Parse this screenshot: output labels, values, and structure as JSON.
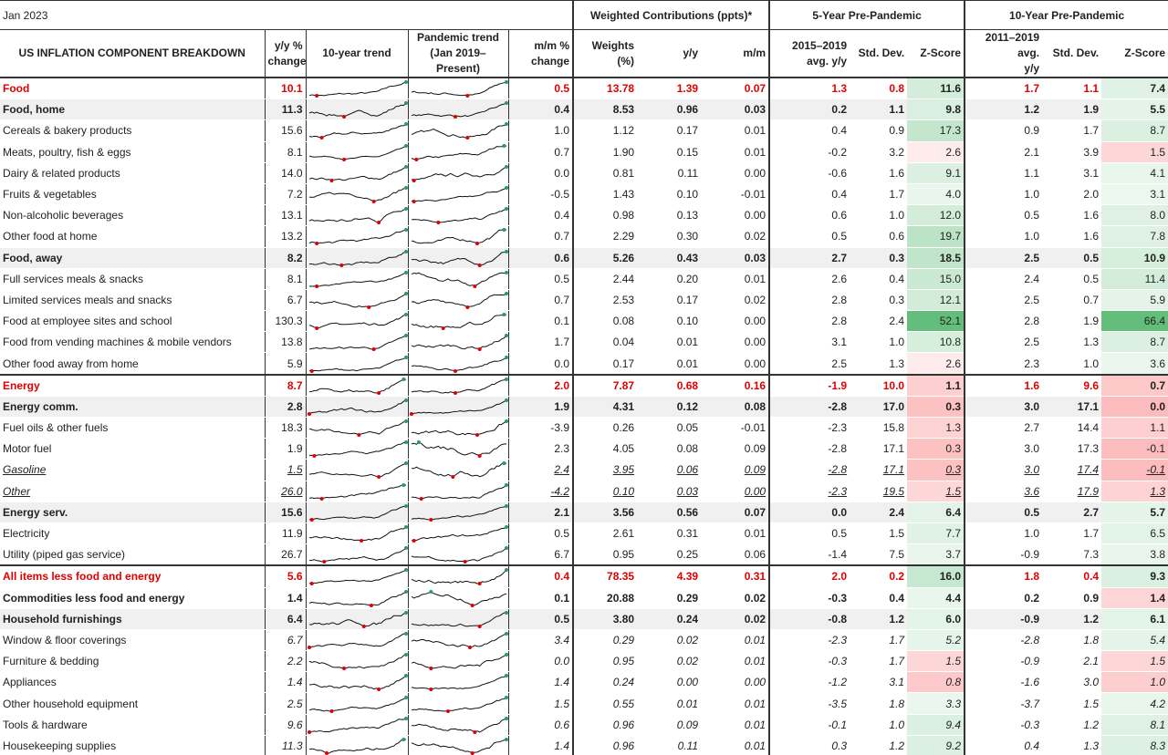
{
  "header": {
    "date": "Jan 2023",
    "groups": [
      "Weighted Contributions (ppts)*",
      "5-Year Pre-Pandemic",
      "10-Year Pre-Pandemic"
    ],
    "columns": [
      "US INFLATION COMPONENT BREAKDOWN",
      "y/y %\nchange",
      "10-year trend",
      "Pandemic trend\n(Jan 2019–Present)",
      "m/m %\nchange",
      "Weights\n(%)",
      "y/y",
      "m/m",
      "2015–2019\navg. y/y",
      "Std. Dev.",
      "Z-Score",
      "2011–2019 avg.\ny/y",
      "Std. Dev.",
      "Z-Score"
    ]
  },
  "rows": [
    {
      "style": "total",
      "cells": [
        "Food",
        "10.1",
        "0.5",
        "13.78",
        "1.39",
        "0.07",
        "1.3",
        "0.8",
        "11.6",
        "1.7",
        "1.1",
        "7.4"
      ]
    },
    {
      "style": "group",
      "cells": [
        "Food, home",
        "11.3",
        "0.4",
        "8.53",
        "0.96",
        "0.03",
        "0.2",
        "1.1",
        "9.8",
        "1.2",
        "1.9",
        "5.5"
      ]
    },
    {
      "style": "item",
      "cells": [
        "Cereals & bakery products",
        "15.6",
        "1.0",
        "1.12",
        "0.17",
        "0.01",
        "0.4",
        "0.9",
        "17.3",
        "0.9",
        "1.7",
        "8.7"
      ]
    },
    {
      "style": "item",
      "cells": [
        "Meats, poultry, fish & eggs",
        "8.1",
        "0.7",
        "1.90",
        "0.15",
        "0.01",
        "-0.2",
        "3.2",
        "2.6",
        "2.1",
        "3.9",
        "1.5"
      ]
    },
    {
      "style": "item",
      "cells": [
        "Dairy & related products",
        "14.0",
        "0.0",
        "0.81",
        "0.11",
        "0.00",
        "-0.6",
        "1.6",
        "9.1",
        "1.1",
        "3.1",
        "4.1"
      ]
    },
    {
      "style": "item",
      "cells": [
        "Fruits & vegetables",
        "7.2",
        "-0.5",
        "1.43",
        "0.10",
        "-0.01",
        "0.4",
        "1.7",
        "4.0",
        "1.0",
        "2.0",
        "3.1"
      ]
    },
    {
      "style": "item",
      "cells": [
        "Non-alcoholic beverages",
        "13.1",
        "0.4",
        "0.98",
        "0.13",
        "0.00",
        "0.6",
        "1.0",
        "12.0",
        "0.5",
        "1.6",
        "8.0"
      ]
    },
    {
      "style": "item",
      "cells": [
        "Other food at home",
        "13.2",
        "0.7",
        "2.29",
        "0.30",
        "0.02",
        "0.5",
        "0.6",
        "19.7",
        "1.0",
        "1.6",
        "7.8"
      ]
    },
    {
      "style": "group",
      "cells": [
        "Food, away",
        "8.2",
        "0.6",
        "5.26",
        "0.43",
        "0.03",
        "2.7",
        "0.3",
        "18.5",
        "2.5",
        "0.5",
        "10.9"
      ]
    },
    {
      "style": "item",
      "cells": [
        "Full services meals & snacks",
        "8.1",
        "0.5",
        "2.44",
        "0.20",
        "0.01",
        "2.6",
        "0.4",
        "15.0",
        "2.4",
        "0.5",
        "11.4"
      ]
    },
    {
      "style": "item",
      "cells": [
        "Limited services meals and snacks",
        "6.7",
        "0.7",
        "2.53",
        "0.17",
        "0.02",
        "2.8",
        "0.3",
        "12.1",
        "2.5",
        "0.7",
        "5.9"
      ]
    },
    {
      "style": "item",
      "cells": [
        "Food at employee sites and school",
        "130.3",
        "0.1",
        "0.08",
        "0.10",
        "0.00",
        "2.8",
        "2.4",
        "52.1",
        "2.8",
        "1.9",
        "66.4"
      ]
    },
    {
      "style": "item",
      "cells": [
        "Food from vending machines & mobile vendors",
        "13.8",
        "1.7",
        "0.04",
        "0.01",
        "0.00",
        "3.1",
        "1.0",
        "10.8",
        "2.5",
        "1.3",
        "8.7"
      ]
    },
    {
      "style": "item",
      "cells": [
        "Other food away from home",
        "5.9",
        "0.0",
        "0.17",
        "0.01",
        "0.00",
        "2.5",
        "1.3",
        "2.6",
        "2.3",
        "1.0",
        "3.6"
      ]
    },
    {
      "style": "total",
      "cells": [
        "Energy",
        "8.7",
        "2.0",
        "7.87",
        "0.68",
        "0.16",
        "-1.9",
        "10.0",
        "1.1",
        "1.6",
        "9.6",
        "0.7"
      ]
    },
    {
      "style": "group",
      "cells": [
        "Energy comm.",
        "2.8",
        "1.9",
        "4.31",
        "0.12",
        "0.08",
        "-2.8",
        "17.0",
        "0.3",
        "3.0",
        "17.1",
        "0.0"
      ]
    },
    {
      "style": "item",
      "cells": [
        "Fuel oils & other fuels",
        "18.3",
        "-3.9",
        "0.26",
        "0.05",
        "-0.01",
        "-2.3",
        "15.8",
        "1.3",
        "2.7",
        "14.4",
        "1.1"
      ]
    },
    {
      "style": "item",
      "cells": [
        "Motor fuel",
        "1.9",
        "2.3",
        "4.05",
        "0.08",
        "0.09",
        "-2.8",
        "17.1",
        "0.3",
        "3.0",
        "17.3",
        "-0.1"
      ]
    },
    {
      "style": "detail",
      "cells": [
        "Gasoline",
        "1.5",
        "2.4",
        "3.95",
        "0.06",
        "0.09",
        "-2.8",
        "17.1",
        "0.3",
        "3.0",
        "17.4",
        "-0.1"
      ]
    },
    {
      "style": "detail",
      "cells": [
        "Other",
        "26.0",
        "-4.2",
        "0.10",
        "0.03",
        "0.00",
        "-2.3",
        "19.5",
        "1.5",
        "3.6",
        "17.9",
        "1.3"
      ]
    },
    {
      "style": "group",
      "cells": [
        "Energy serv.",
        "15.6",
        "2.1",
        "3.56",
        "0.56",
        "0.07",
        "0.0",
        "2.4",
        "6.4",
        "0.5",
        "2.7",
        "5.7"
      ]
    },
    {
      "style": "item",
      "cells": [
        "Electricity",
        "11.9",
        "0.5",
        "2.61",
        "0.31",
        "0.01",
        "0.5",
        "1.5",
        "7.7",
        "1.0",
        "1.7",
        "6.5"
      ]
    },
    {
      "style": "item",
      "cells": [
        "Utility (piped gas service)",
        "26.7",
        "6.7",
        "0.95",
        "0.25",
        "0.06",
        "-1.4",
        "7.5",
        "3.7",
        "-0.9",
        "7.3",
        "3.8"
      ]
    },
    {
      "style": "total",
      "cells": [
        "All items less food and energy",
        "5.6",
        "0.4",
        "78.35",
        "4.39",
        "0.31",
        "2.0",
        "0.2",
        "16.0",
        "1.8",
        "0.4",
        "9.3"
      ]
    },
    {
      "style": "subtotal",
      "cells": [
        "Commodities less food and energy",
        "1.4",
        "0.1",
        "20.88",
        "0.29",
        "0.02",
        "-0.3",
        "0.4",
        "4.4",
        "0.2",
        "0.9",
        "1.4"
      ]
    },
    {
      "style": "group",
      "cells": [
        "Household furnishings",
        "6.4",
        "0.5",
        "3.80",
        "0.24",
        "0.02",
        "-0.8",
        "1.2",
        "6.0",
        "-0.9",
        "1.2",
        "6.1"
      ]
    },
    {
      "style": "italic",
      "cells": [
        "Window & floor coverings",
        "6.7",
        "3.4",
        "0.29",
        "0.02",
        "0.01",
        "-2.3",
        "1.7",
        "5.2",
        "-2.8",
        "1.8",
        "5.4"
      ]
    },
    {
      "style": "italic",
      "cells": [
        "Furniture & bedding",
        "2.2",
        "0.0",
        "0.95",
        "0.02",
        "0.01",
        "-0.3",
        "1.7",
        "1.5",
        "-0.9",
        "2.1",
        "1.5"
      ]
    },
    {
      "style": "italic",
      "cells": [
        "Appliances",
        "1.4",
        "1.4",
        "0.24",
        "0.00",
        "0.00",
        "-1.2",
        "3.1",
        "0.8",
        "-1.6",
        "3.0",
        "1.0"
      ]
    },
    {
      "style": "italic",
      "cells": [
        "Other household equipment",
        "2.5",
        "1.5",
        "0.55",
        "0.01",
        "0.01",
        "-3.5",
        "1.8",
        "3.3",
        "-3.7",
        "1.5",
        "4.2"
      ]
    },
    {
      "style": "italic",
      "cells": [
        "Tools & hardware",
        "9.6",
        "0.6",
        "0.96",
        "0.09",
        "0.01",
        "-0.1",
        "1.0",
        "9.4",
        "-0.3",
        "1.2",
        "8.1"
      ]
    },
    {
      "style": "italic",
      "cells": [
        "Housekeeping supplies",
        "11.3",
        "1.4",
        "0.96",
        "0.11",
        "0.01",
        "0.3",
        "1.2",
        "9.2",
        "0.4",
        "1.3",
        "8.3"
      ]
    }
  ]
}
